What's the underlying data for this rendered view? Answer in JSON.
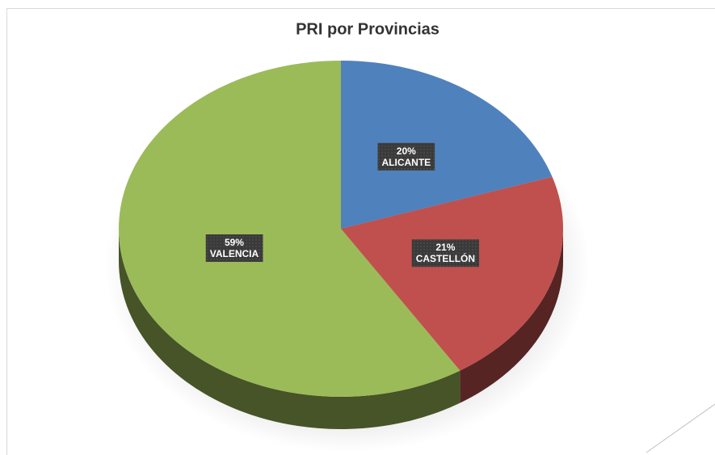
{
  "chart_data": {
    "type": "pie",
    "title": "PRI por Provincias",
    "categories": [
      "ALICANTE",
      "CASTELLÓN",
      "VALENCIA"
    ],
    "values": [
      20,
      21,
      59
    ],
    "value_labels": [
      "20%",
      "21%",
      "59%"
    ],
    "colors": [
      "#4f81bd",
      "#c0504d",
      "#9bbb59"
    ]
  }
}
